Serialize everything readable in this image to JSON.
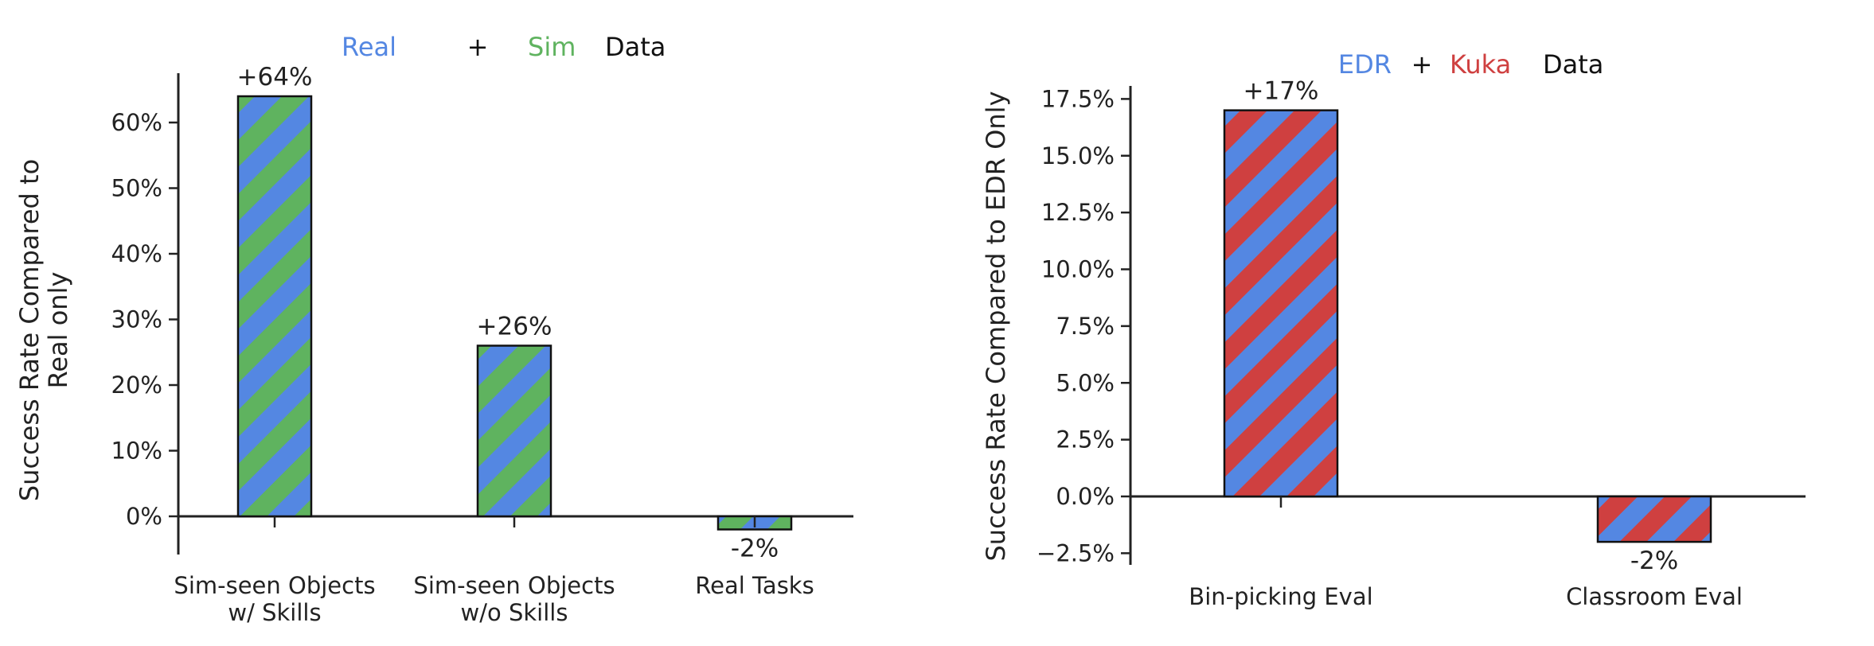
{
  "chart_data": [
    {
      "type": "bar",
      "title": [
        {
          "text": "Real",
          "color": "#5487e2"
        },
        {
          "text": "+",
          "color": "#111111"
        },
        {
          "text": "Sim",
          "color": "#5fb35f"
        },
        {
          "text": "Data",
          "color": "#111111"
        }
      ],
      "ylabel": [
        "Success Rate Compared to",
        "Real only"
      ],
      "categories": [
        [
          "Sim-seen Objects",
          "w/ Skills"
        ],
        [
          "Sim-seen Objects",
          "w/o Skills"
        ],
        [
          "Real Tasks"
        ]
      ],
      "values": [
        64,
        26,
        -2
      ],
      "value_labels": [
        "+64%",
        "+26%",
        "-2%"
      ],
      "yticks": [
        0,
        10,
        20,
        30,
        40,
        50,
        60
      ],
      "ytick_labels": [
        "0%",
        "10%",
        "20%",
        "30%",
        "40%",
        "50%",
        "60%"
      ],
      "ylim": [
        -5.6,
        67.6
      ],
      "hatch_colors": [
        "#5487e2",
        "#5fb35f"
      ],
      "grid": false,
      "legend": "none"
    },
    {
      "type": "bar",
      "title": [
        {
          "text": "EDR",
          "color": "#5487e2"
        },
        {
          "text": "+",
          "color": "#111111"
        },
        {
          "text": "Kuka",
          "color": "#cf4040"
        },
        {
          "text": "Data",
          "color": "#111111"
        }
      ],
      "ylabel": [
        "Success Rate Compared to EDR Only"
      ],
      "categories": [
        [
          "Bin-picking Eval"
        ],
        [
          "Classroom Eval"
        ]
      ],
      "values": [
        17,
        -2
      ],
      "value_labels": [
        "+17%",
        "-2%"
      ],
      "yticks": [
        -2.5,
        0,
        2.5,
        5,
        7.5,
        10,
        12.5,
        15,
        17.5
      ],
      "ytick_labels": [
        "−2.5%",
        "0.0%",
        "2.5%",
        "5.0%",
        "7.5%",
        "10.0%",
        "12.5%",
        "15.0%",
        "17.5%"
      ],
      "ylim": [
        -3.0,
        18.0
      ],
      "hatch_colors": [
        "#5487e2",
        "#cf4040"
      ],
      "grid": false,
      "legend": "none"
    }
  ]
}
